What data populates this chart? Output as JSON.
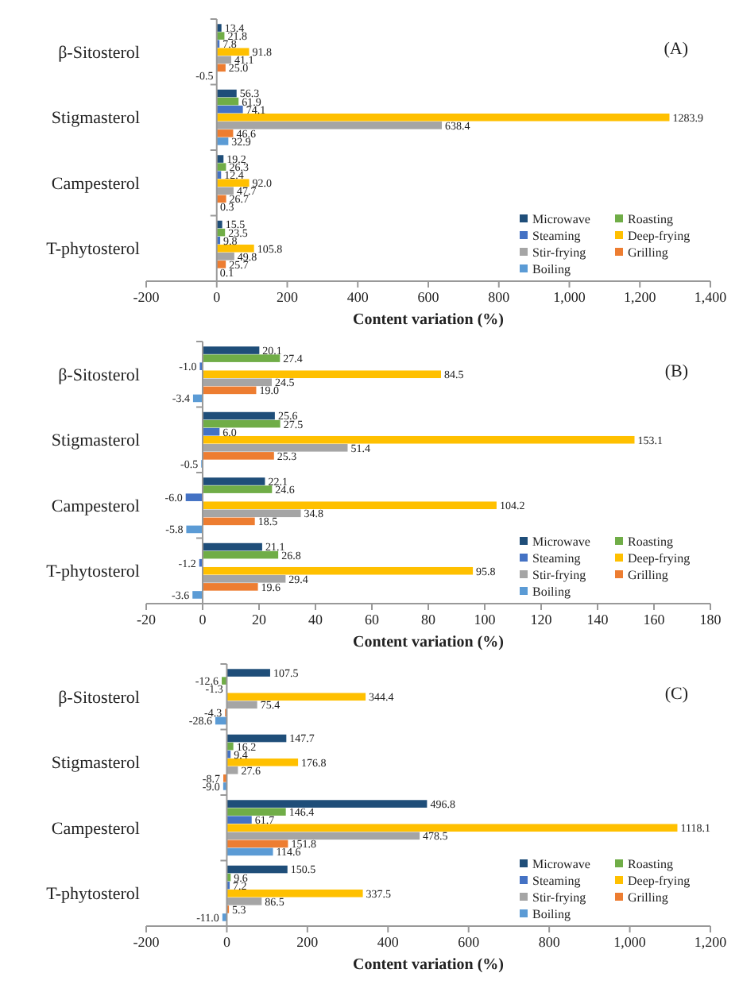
{
  "chart_data": [
    {
      "type": "bar",
      "orientation": "horizontal",
      "title": "(A)",
      "xlabel": "Content variation (%)",
      "categories": [
        "β-Sitosterol",
        "Stigmasterol",
        "Campesterol",
        "T-phytosterol"
      ],
      "series": [
        {
          "name": "Microwave",
          "color": "#1f4e79",
          "values": [
            13.4,
            56.3,
            19.2,
            15.5
          ],
          "value_labels": [
            "13.4",
            "56.3",
            "19.2",
            "15.5"
          ]
        },
        {
          "name": "Roasting",
          "color": "#70ad47",
          "values": [
            21.8,
            61.9,
            26.3,
            23.5
          ],
          "value_labels": [
            "21.8",
            "61.9",
            "26.3",
            "23.5"
          ]
        },
        {
          "name": "Steaming",
          "color": "#4472c4",
          "values": [
            7.8,
            74.1,
            12.4,
            9.8
          ],
          "value_labels": [
            "7.8",
            "74.1",
            "12.4",
            "9.8"
          ]
        },
        {
          "name": "Deep-frying",
          "color": "#ffc000",
          "values": [
            91.8,
            1283.9,
            92.0,
            105.8
          ],
          "value_labels": [
            "91.8",
            "1283.9",
            "92.0",
            "105.8"
          ]
        },
        {
          "name": "Stir-frying",
          "color": "#a5a5a5",
          "values": [
            41.1,
            638.4,
            47.7,
            49.8
          ],
          "value_labels": [
            "41.1",
            "638.4",
            "47.7",
            "49.8"
          ]
        },
        {
          "name": "Grilling",
          "color": "#ed7d31",
          "values": [
            25.0,
            46.6,
            26.7,
            25.7
          ],
          "value_labels": [
            "25.0",
            "46.6",
            "26.7",
            "25.7"
          ]
        },
        {
          "name": "Boiling",
          "color": "#5b9bd5",
          "values": [
            -0.5,
            32.9,
            0.3,
            0.1
          ],
          "value_labels": [
            "-0.5",
            "32.9",
            "0.3",
            "0.1"
          ]
        }
      ],
      "xlim": [
        -200,
        1400
      ],
      "xticks": [
        -200,
        0,
        200,
        400,
        600,
        800,
        {
          "value": 1000,
          "label": "1,000"
        },
        {
          "value": 1200,
          "label": "1,200"
        },
        {
          "value": 1400,
          "label": "1,400"
        }
      ],
      "legend": "bottom right"
    },
    {
      "type": "bar",
      "orientation": "horizontal",
      "title": "(B)",
      "xlabel": "Content variation (%)",
      "categories": [
        "β-Sitosterol",
        "Stigmasterol",
        "Campesterol",
        "T-phytosterol"
      ],
      "series": [
        {
          "name": "Microwave",
          "color": "#1f4e79",
          "values": [
            20.1,
            25.6,
            22.1,
            21.1
          ],
          "value_labels": [
            "20.1",
            "25.6",
            "22.1",
            "21.1"
          ]
        },
        {
          "name": "Roasting",
          "color": "#70ad47",
          "values": [
            27.4,
            27.5,
            24.6,
            26.8
          ],
          "value_labels": [
            "27.4",
            "27.5",
            "24.6",
            "26.8"
          ]
        },
        {
          "name": "Steaming",
          "color": "#4472c4",
          "values": [
            -1.0,
            6.0,
            -6.0,
            -1.2
          ],
          "value_labels": [
            "-1.0",
            "6.0",
            "-6.0",
            "-1.2"
          ]
        },
        {
          "name": "Deep-frying",
          "color": "#ffc000",
          "values": [
            84.5,
            153.1,
            104.2,
            95.8
          ],
          "value_labels": [
            "84.5",
            "153.1",
            "104.2",
            "95.8"
          ]
        },
        {
          "name": "Stir-frying",
          "color": "#a5a5a5",
          "values": [
            24.5,
            51.4,
            34.8,
            29.4
          ],
          "value_labels": [
            "24.5",
            "51.4",
            "34.8",
            "29.4"
          ]
        },
        {
          "name": "Grilling",
          "color": "#ed7d31",
          "values": [
            19.0,
            25.3,
            18.5,
            19.6
          ],
          "value_labels": [
            "19.0",
            "25.3",
            "18.5",
            "19.6"
          ]
        },
        {
          "name": "Boiling",
          "color": "#5b9bd5",
          "values": [
            -3.4,
            -0.5,
            -5.8,
            -3.6
          ],
          "value_labels": [
            "-3.4",
            "-0.5",
            "-5.8",
            "-3.6"
          ]
        }
      ],
      "xlim": [
        -20,
        180
      ],
      "xticks": [
        -20,
        0,
        20,
        40,
        60,
        80,
        100,
        120,
        140,
        160,
        180
      ],
      "legend": "bottom right"
    },
    {
      "type": "bar",
      "orientation": "horizontal",
      "title": "(C)",
      "xlabel": "Content variation (%)",
      "categories": [
        "β-Sitosterol",
        "Stigmasterol",
        "Campesterol",
        "T-phytosterol"
      ],
      "series": [
        {
          "name": "Microwave",
          "color": "#1f4e79",
          "values": [
            107.5,
            147.7,
            496.8,
            150.5
          ],
          "value_labels": [
            "107.5",
            "147.7",
            "496.8",
            "150.5"
          ]
        },
        {
          "name": "Roasting",
          "color": "#70ad47",
          "values": [
            -12.6,
            16.2,
            146.4,
            9.6
          ],
          "value_labels": [
            "-12.6",
            "16.2",
            "146.4",
            "9.6"
          ]
        },
        {
          "name": "Steaming",
          "color": "#4472c4",
          "values": [
            -1.3,
            9.4,
            61.7,
            7.2
          ],
          "value_labels": [
            "-1.3",
            "9.4",
            "61.7",
            "7.2"
          ]
        },
        {
          "name": "Deep-frying",
          "color": "#ffc000",
          "values": [
            344.4,
            176.8,
            1118.1,
            337.5
          ],
          "value_labels": [
            "344.4",
            "176.8",
            "1118.1",
            "337.5"
          ]
        },
        {
          "name": "Stir-frying",
          "color": "#a5a5a5",
          "values": [
            75.4,
            27.6,
            478.5,
            86.5
          ],
          "value_labels": [
            "75.4",
            "27.6",
            "478.5",
            "86.5"
          ]
        },
        {
          "name": "Grilling",
          "color": "#ed7d31",
          "values": [
            -4.3,
            -8.7,
            151.8,
            5.3
          ],
          "value_labels": [
            "-4.3",
            "-8.7",
            "151.8",
            "5.3"
          ]
        },
        {
          "name": "Boiling",
          "color": "#5b9bd5",
          "values": [
            -28.6,
            -9.0,
            114.6,
            -11.0
          ],
          "value_labels": [
            "-28.6",
            "-9.0",
            "114.6",
            "-11.0"
          ]
        }
      ],
      "xlim": [
        -200,
        1200
      ],
      "xticks": [
        -200,
        0,
        200,
        400,
        600,
        800,
        {
          "value": 1000,
          "label": "1,000"
        },
        {
          "value": 1200,
          "label": "1,200"
        }
      ],
      "legend": "bottom right"
    }
  ]
}
